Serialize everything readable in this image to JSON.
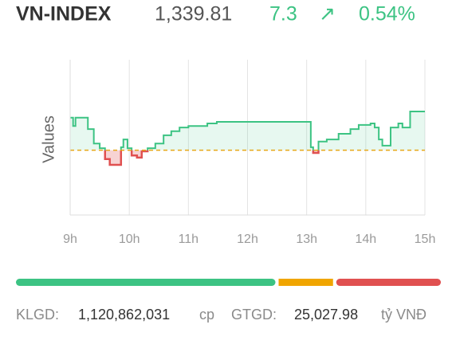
{
  "header": {
    "symbol": "VN-INDEX",
    "price": "1,339.81",
    "change": "7.3",
    "arrow": "↗",
    "percent": "0.54%"
  },
  "chart_data": {
    "type": "line",
    "y_label": "Values",
    "x": [
      9.0,
      9.05,
      9.09,
      9.23,
      9.3,
      9.4,
      9.5,
      9.59,
      9.67,
      9.78,
      9.86,
      9.9,
      9.97,
      10.04,
      10.13,
      10.21,
      10.31,
      10.44,
      10.58,
      10.71,
      10.85,
      11.0,
      11.32,
      11.48,
      13.0,
      13.07,
      13.11,
      13.2,
      13.34,
      13.54,
      13.74,
      13.88,
      14.08,
      14.15,
      14.22,
      14.28,
      14.42,
      14.55,
      14.62,
      14.75,
      15.0
    ],
    "series": [
      {
        "color": "#3cc383",
        "below_color": "#e05050",
        "values": [
          1338.8,
          1337.2,
          1338.8,
          1338.8,
          1336.6,
          1333.8,
          1332.9,
          1330.8,
          1329.7,
          1329.7,
          1333.1,
          1334.6,
          1332.9,
          1331.5,
          1331.1,
          1332.3,
          1332.9,
          1333.8,
          1335.4,
          1336.2,
          1336.9,
          1337.2,
          1337.7,
          1338.0,
          1338.0,
          1333.1,
          1332.0,
          1334.2,
          1334.6,
          1335.7,
          1336.6,
          1337.4,
          1337.7,
          1336.9,
          1334.6,
          1333.4,
          1336.9,
          1337.7,
          1336.9,
          1340.0,
          1340.0
        ]
      }
    ],
    "reference": 1332.51,
    "reference_color": "#e6a817",
    "xlim": [
      9,
      15
    ],
    "ylim": [
      1320,
      1350
    ],
    "xticks": [
      {
        "value": 9,
        "label": "9h"
      },
      {
        "value": 10,
        "label": "10h"
      },
      {
        "value": 11,
        "label": "11h"
      },
      {
        "value": 12,
        "label": "12h"
      },
      {
        "value": 13,
        "label": "13h"
      },
      {
        "value": 14,
        "label": "14h"
      },
      {
        "value": 15,
        "label": "15h"
      }
    ],
    "grid": true
  },
  "breadth": [
    {
      "color": "#3cc383",
      "value": 62
    },
    {
      "color": "#f0a500",
      "value": 13
    },
    {
      "color": "#e05050",
      "value": 25
    }
  ],
  "footer": {
    "volume_label": "KLGD:",
    "volume": "1,120,862,031",
    "volume_unit": "cp",
    "value_label": "GTGD:",
    "value": "25,027.98",
    "value_unit": "tỷ VNĐ"
  }
}
